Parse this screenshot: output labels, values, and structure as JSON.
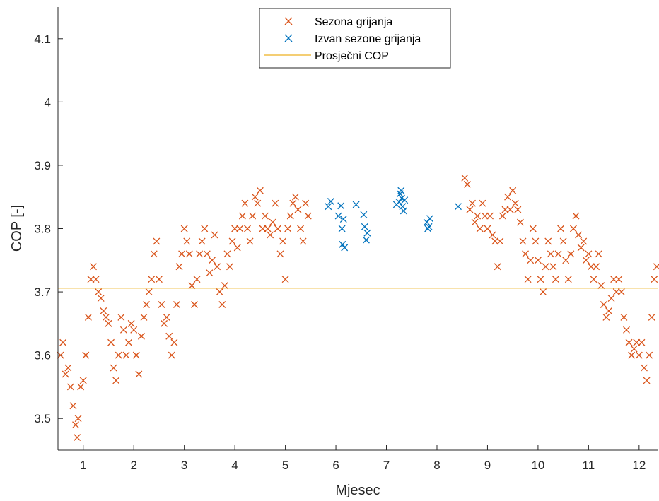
{
  "chart_data": {
    "type": "scatter",
    "title": "",
    "xlabel": "Mjesec",
    "ylabel": "COP [-]",
    "xlim": [
      0.5,
      12.38
    ],
    "ylim": [
      3.45,
      4.15
    ],
    "xticks": [
      1,
      2,
      3,
      4,
      5,
      6,
      7,
      8,
      9,
      10,
      11,
      12
    ],
    "xtick_labels": [
      "1",
      "2",
      "3",
      "4",
      "5",
      "6",
      "7",
      "8",
      "9",
      "10",
      "11",
      "12"
    ],
    "yticks": [
      3.5,
      3.6,
      3.7,
      3.8,
      3.9,
      4.0,
      4.1
    ],
    "ytick_labels": [
      "3.5",
      "3.6",
      "3.7",
      "3.8",
      "3.9",
      "4",
      "4.1"
    ],
    "grid": false,
    "legend_position": "top-center",
    "series": [
      {
        "name": "Sezona grijanja",
        "marker": "x",
        "color": "#D95319",
        "points": [
          [
            0.55,
            3.6
          ],
          [
            0.6,
            3.62
          ],
          [
            0.65,
            3.57
          ],
          [
            0.7,
            3.58
          ],
          [
            0.75,
            3.55
          ],
          [
            0.8,
            3.52
          ],
          [
            0.85,
            3.49
          ],
          [
            0.88,
            3.47
          ],
          [
            0.9,
            3.5
          ],
          [
            0.95,
            3.55
          ],
          [
            1.0,
            3.56
          ],
          [
            1.05,
            3.6
          ],
          [
            1.1,
            3.66
          ],
          [
            1.15,
            3.72
          ],
          [
            1.2,
            3.74
          ],
          [
            1.25,
            3.72
          ],
          [
            1.3,
            3.7
          ],
          [
            1.35,
            3.69
          ],
          [
            1.4,
            3.67
          ],
          [
            1.45,
            3.66
          ],
          [
            1.5,
            3.65
          ],
          [
            1.55,
            3.62
          ],
          [
            1.6,
            3.58
          ],
          [
            1.65,
            3.56
          ],
          [
            1.7,
            3.6
          ],
          [
            1.75,
            3.66
          ],
          [
            1.8,
            3.64
          ],
          [
            1.85,
            3.6
          ],
          [
            1.9,
            3.62
          ],
          [
            1.95,
            3.65
          ],
          [
            2.0,
            3.64
          ],
          [
            2.05,
            3.6
          ],
          [
            2.1,
            3.57
          ],
          [
            2.15,
            3.63
          ],
          [
            2.2,
            3.66
          ],
          [
            2.25,
            3.68
          ],
          [
            2.3,
            3.7
          ],
          [
            2.35,
            3.72
          ],
          [
            2.4,
            3.76
          ],
          [
            2.45,
            3.78
          ],
          [
            2.5,
            3.72
          ],
          [
            2.55,
            3.68
          ],
          [
            2.6,
            3.65
          ],
          [
            2.65,
            3.66
          ],
          [
            2.7,
            3.63
          ],
          [
            2.75,
            3.6
          ],
          [
            2.8,
            3.62
          ],
          [
            2.85,
            3.68
          ],
          [
            2.9,
            3.74
          ],
          [
            2.95,
            3.76
          ],
          [
            3.0,
            3.8
          ],
          [
            3.05,
            3.78
          ],
          [
            3.1,
            3.76
          ],
          [
            3.15,
            3.71
          ],
          [
            3.2,
            3.68
          ],
          [
            3.25,
            3.72
          ],
          [
            3.3,
            3.76
          ],
          [
            3.35,
            3.78
          ],
          [
            3.4,
            3.8
          ],
          [
            3.45,
            3.76
          ],
          [
            3.5,
            3.73
          ],
          [
            3.55,
            3.75
          ],
          [
            3.6,
            3.79
          ],
          [
            3.65,
            3.74
          ],
          [
            3.7,
            3.7
          ],
          [
            3.75,
            3.68
          ],
          [
            3.8,
            3.71
          ],
          [
            3.85,
            3.76
          ],
          [
            3.9,
            3.74
          ],
          [
            3.95,
            3.78
          ],
          [
            4.0,
            3.8
          ],
          [
            4.05,
            3.77
          ],
          [
            4.1,
            3.8
          ],
          [
            4.15,
            3.82
          ],
          [
            4.2,
            3.84
          ],
          [
            4.25,
            3.8
          ],
          [
            4.3,
            3.78
          ],
          [
            4.35,
            3.82
          ],
          [
            4.4,
            3.85
          ],
          [
            4.45,
            3.84
          ],
          [
            4.5,
            3.86
          ],
          [
            4.55,
            3.8
          ],
          [
            4.6,
            3.82
          ],
          [
            4.65,
            3.8
          ],
          [
            4.7,
            3.79
          ],
          [
            4.75,
            3.81
          ],
          [
            4.8,
            3.84
          ],
          [
            4.85,
            3.8
          ],
          [
            4.9,
            3.76
          ],
          [
            4.95,
            3.78
          ],
          [
            5.0,
            3.72
          ],
          [
            5.05,
            3.8
          ],
          [
            5.1,
            3.82
          ],
          [
            5.15,
            3.84
          ],
          [
            5.2,
            3.85
          ],
          [
            5.25,
            3.83
          ],
          [
            5.3,
            3.8
          ],
          [
            5.35,
            3.78
          ],
          [
            5.4,
            3.84
          ],
          [
            5.45,
            3.82
          ],
          [
            8.55,
            3.88
          ],
          [
            8.6,
            3.87
          ],
          [
            8.65,
            3.83
          ],
          [
            8.7,
            3.84
          ],
          [
            8.75,
            3.81
          ],
          [
            8.8,
            3.82
          ],
          [
            8.85,
            3.8
          ],
          [
            8.9,
            3.84
          ],
          [
            8.95,
            3.82
          ],
          [
            9.0,
            3.8
          ],
          [
            9.05,
            3.82
          ],
          [
            9.1,
            3.79
          ],
          [
            9.15,
            3.78
          ],
          [
            9.2,
            3.74
          ],
          [
            9.25,
            3.78
          ],
          [
            9.3,
            3.82
          ],
          [
            9.35,
            3.83
          ],
          [
            9.4,
            3.85
          ],
          [
            9.45,
            3.83
          ],
          [
            9.5,
            3.86
          ],
          [
            9.55,
            3.84
          ],
          [
            9.6,
            3.83
          ],
          [
            9.65,
            3.81
          ],
          [
            9.7,
            3.78
          ],
          [
            9.75,
            3.76
          ],
          [
            9.8,
            3.72
          ],
          [
            9.85,
            3.75
          ],
          [
            9.9,
            3.8
          ],
          [
            9.95,
            3.78
          ],
          [
            10.0,
            3.75
          ],
          [
            10.05,
            3.72
          ],
          [
            10.1,
            3.7
          ],
          [
            10.15,
            3.74
          ],
          [
            10.2,
            3.78
          ],
          [
            10.25,
            3.76
          ],
          [
            10.3,
            3.74
          ],
          [
            10.35,
            3.72
          ],
          [
            10.4,
            3.76
          ],
          [
            10.45,
            3.8
          ],
          [
            10.5,
            3.78
          ],
          [
            10.55,
            3.75
          ],
          [
            10.6,
            3.72
          ],
          [
            10.65,
            3.76
          ],
          [
            10.7,
            3.8
          ],
          [
            10.75,
            3.82
          ],
          [
            10.8,
            3.79
          ],
          [
            10.85,
            3.77
          ],
          [
            10.9,
            3.78
          ],
          [
            10.95,
            3.75
          ],
          [
            11.0,
            3.76
          ],
          [
            11.05,
            3.74
          ],
          [
            11.1,
            3.72
          ],
          [
            11.15,
            3.74
          ],
          [
            11.2,
            3.76
          ],
          [
            11.25,
            3.71
          ],
          [
            11.3,
            3.68
          ],
          [
            11.35,
            3.66
          ],
          [
            11.4,
            3.67
          ],
          [
            11.45,
            3.69
          ],
          [
            11.5,
            3.72
          ],
          [
            11.55,
            3.7
          ],
          [
            11.6,
            3.72
          ],
          [
            11.65,
            3.7
          ],
          [
            11.7,
            3.66
          ],
          [
            11.75,
            3.64
          ],
          [
            11.8,
            3.62
          ],
          [
            11.85,
            3.6
          ],
          [
            11.9,
            3.61
          ],
          [
            11.95,
            3.62
          ],
          [
            12.0,
            3.6
          ],
          [
            12.05,
            3.62
          ],
          [
            12.1,
            3.58
          ],
          [
            12.15,
            3.56
          ],
          [
            12.2,
            3.6
          ],
          [
            12.25,
            3.66
          ],
          [
            12.3,
            3.72
          ],
          [
            12.35,
            3.74
          ]
        ]
      },
      {
        "name": "Izvan sezone grijanja",
        "marker": "x",
        "color": "#0072BD",
        "points": [
          [
            5.85,
            3.835
          ],
          [
            5.9,
            3.843
          ],
          [
            6.05,
            3.82
          ],
          [
            6.1,
            3.836
          ],
          [
            6.12,
            3.8
          ],
          [
            6.13,
            3.775
          ],
          [
            6.15,
            3.815
          ],
          [
            6.17,
            3.77
          ],
          [
            6.4,
            3.838
          ],
          [
            6.55,
            3.822
          ],
          [
            6.57,
            3.803
          ],
          [
            6.6,
            3.782
          ],
          [
            6.62,
            3.793
          ],
          [
            7.2,
            3.838
          ],
          [
            7.25,
            3.842
          ],
          [
            7.27,
            3.855
          ],
          [
            7.29,
            3.86
          ],
          [
            7.3,
            3.848
          ],
          [
            7.32,
            3.835
          ],
          [
            7.34,
            3.828
          ],
          [
            7.36,
            3.845
          ],
          [
            7.8,
            3.81
          ],
          [
            7.82,
            3.8
          ],
          [
            7.84,
            3.803
          ],
          [
            7.86,
            3.816
          ],
          [
            8.42,
            3.835
          ]
        ]
      },
      {
        "name": "Prosječni COP",
        "marker": "line",
        "color": "#EDB120",
        "value": 3.706
      }
    ]
  }
}
